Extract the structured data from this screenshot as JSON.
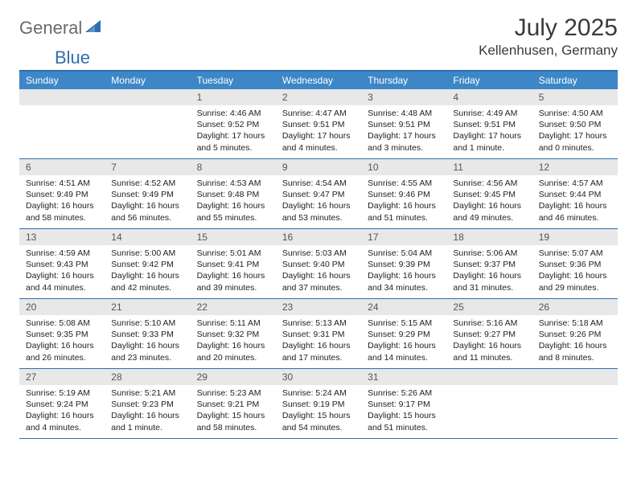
{
  "logo": {
    "text_general": "General",
    "text_blue": "Blue",
    "triangle_color": "#2f6fb0"
  },
  "title": "July 2025",
  "location": "Kellenhusen, Germany",
  "colors": {
    "header_bg": "#3d87c7",
    "border": "#2f6fb0",
    "daynum_bg": "#e8e8e8",
    "text_dark": "#222222",
    "text_gray": "#6a6a6a"
  },
  "day_names": [
    "Sunday",
    "Monday",
    "Tuesday",
    "Wednesday",
    "Thursday",
    "Friday",
    "Saturday"
  ],
  "weeks": [
    [
      {
        "n": "",
        "sunrise": "",
        "sunset": "",
        "daylight": ""
      },
      {
        "n": "",
        "sunrise": "",
        "sunset": "",
        "daylight": ""
      },
      {
        "n": "1",
        "sunrise": "Sunrise: 4:46 AM",
        "sunset": "Sunset: 9:52 PM",
        "daylight": "Daylight: 17 hours and 5 minutes."
      },
      {
        "n": "2",
        "sunrise": "Sunrise: 4:47 AM",
        "sunset": "Sunset: 9:51 PM",
        "daylight": "Daylight: 17 hours and 4 minutes."
      },
      {
        "n": "3",
        "sunrise": "Sunrise: 4:48 AM",
        "sunset": "Sunset: 9:51 PM",
        "daylight": "Daylight: 17 hours and 3 minutes."
      },
      {
        "n": "4",
        "sunrise": "Sunrise: 4:49 AM",
        "sunset": "Sunset: 9:51 PM",
        "daylight": "Daylight: 17 hours and 1 minute."
      },
      {
        "n": "5",
        "sunrise": "Sunrise: 4:50 AM",
        "sunset": "Sunset: 9:50 PM",
        "daylight": "Daylight: 17 hours and 0 minutes."
      }
    ],
    [
      {
        "n": "6",
        "sunrise": "Sunrise: 4:51 AM",
        "sunset": "Sunset: 9:49 PM",
        "daylight": "Daylight: 16 hours and 58 minutes."
      },
      {
        "n": "7",
        "sunrise": "Sunrise: 4:52 AM",
        "sunset": "Sunset: 9:49 PM",
        "daylight": "Daylight: 16 hours and 56 minutes."
      },
      {
        "n": "8",
        "sunrise": "Sunrise: 4:53 AM",
        "sunset": "Sunset: 9:48 PM",
        "daylight": "Daylight: 16 hours and 55 minutes."
      },
      {
        "n": "9",
        "sunrise": "Sunrise: 4:54 AM",
        "sunset": "Sunset: 9:47 PM",
        "daylight": "Daylight: 16 hours and 53 minutes."
      },
      {
        "n": "10",
        "sunrise": "Sunrise: 4:55 AM",
        "sunset": "Sunset: 9:46 PM",
        "daylight": "Daylight: 16 hours and 51 minutes."
      },
      {
        "n": "11",
        "sunrise": "Sunrise: 4:56 AM",
        "sunset": "Sunset: 9:45 PM",
        "daylight": "Daylight: 16 hours and 49 minutes."
      },
      {
        "n": "12",
        "sunrise": "Sunrise: 4:57 AM",
        "sunset": "Sunset: 9:44 PM",
        "daylight": "Daylight: 16 hours and 46 minutes."
      }
    ],
    [
      {
        "n": "13",
        "sunrise": "Sunrise: 4:59 AM",
        "sunset": "Sunset: 9:43 PM",
        "daylight": "Daylight: 16 hours and 44 minutes."
      },
      {
        "n": "14",
        "sunrise": "Sunrise: 5:00 AM",
        "sunset": "Sunset: 9:42 PM",
        "daylight": "Daylight: 16 hours and 42 minutes."
      },
      {
        "n": "15",
        "sunrise": "Sunrise: 5:01 AM",
        "sunset": "Sunset: 9:41 PM",
        "daylight": "Daylight: 16 hours and 39 minutes."
      },
      {
        "n": "16",
        "sunrise": "Sunrise: 5:03 AM",
        "sunset": "Sunset: 9:40 PM",
        "daylight": "Daylight: 16 hours and 37 minutes."
      },
      {
        "n": "17",
        "sunrise": "Sunrise: 5:04 AM",
        "sunset": "Sunset: 9:39 PM",
        "daylight": "Daylight: 16 hours and 34 minutes."
      },
      {
        "n": "18",
        "sunrise": "Sunrise: 5:06 AM",
        "sunset": "Sunset: 9:37 PM",
        "daylight": "Daylight: 16 hours and 31 minutes."
      },
      {
        "n": "19",
        "sunrise": "Sunrise: 5:07 AM",
        "sunset": "Sunset: 9:36 PM",
        "daylight": "Daylight: 16 hours and 29 minutes."
      }
    ],
    [
      {
        "n": "20",
        "sunrise": "Sunrise: 5:08 AM",
        "sunset": "Sunset: 9:35 PM",
        "daylight": "Daylight: 16 hours and 26 minutes."
      },
      {
        "n": "21",
        "sunrise": "Sunrise: 5:10 AM",
        "sunset": "Sunset: 9:33 PM",
        "daylight": "Daylight: 16 hours and 23 minutes."
      },
      {
        "n": "22",
        "sunrise": "Sunrise: 5:11 AM",
        "sunset": "Sunset: 9:32 PM",
        "daylight": "Daylight: 16 hours and 20 minutes."
      },
      {
        "n": "23",
        "sunrise": "Sunrise: 5:13 AM",
        "sunset": "Sunset: 9:31 PM",
        "daylight": "Daylight: 16 hours and 17 minutes."
      },
      {
        "n": "24",
        "sunrise": "Sunrise: 5:15 AM",
        "sunset": "Sunset: 9:29 PM",
        "daylight": "Daylight: 16 hours and 14 minutes."
      },
      {
        "n": "25",
        "sunrise": "Sunrise: 5:16 AM",
        "sunset": "Sunset: 9:27 PM",
        "daylight": "Daylight: 16 hours and 11 minutes."
      },
      {
        "n": "26",
        "sunrise": "Sunrise: 5:18 AM",
        "sunset": "Sunset: 9:26 PM",
        "daylight": "Daylight: 16 hours and 8 minutes."
      }
    ],
    [
      {
        "n": "27",
        "sunrise": "Sunrise: 5:19 AM",
        "sunset": "Sunset: 9:24 PM",
        "daylight": "Daylight: 16 hours and 4 minutes."
      },
      {
        "n": "28",
        "sunrise": "Sunrise: 5:21 AM",
        "sunset": "Sunset: 9:23 PM",
        "daylight": "Daylight: 16 hours and 1 minute."
      },
      {
        "n": "29",
        "sunrise": "Sunrise: 5:23 AM",
        "sunset": "Sunset: 9:21 PM",
        "daylight": "Daylight: 15 hours and 58 minutes."
      },
      {
        "n": "30",
        "sunrise": "Sunrise: 5:24 AM",
        "sunset": "Sunset: 9:19 PM",
        "daylight": "Daylight: 15 hours and 54 minutes."
      },
      {
        "n": "31",
        "sunrise": "Sunrise: 5:26 AM",
        "sunset": "Sunset: 9:17 PM",
        "daylight": "Daylight: 15 hours and 51 minutes."
      },
      {
        "n": "",
        "sunrise": "",
        "sunset": "",
        "daylight": ""
      },
      {
        "n": "",
        "sunrise": "",
        "sunset": "",
        "daylight": ""
      }
    ]
  ]
}
